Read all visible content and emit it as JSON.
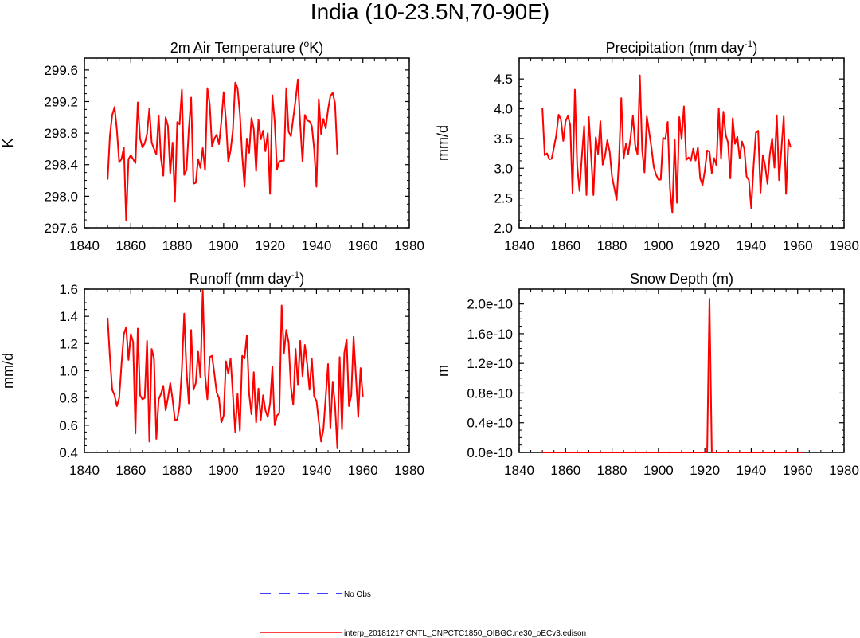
{
  "figure_title": "India (10-23.5N,70-90E)",
  "colors": {
    "model_line": "#ff0000",
    "obs_line": "#0000ff",
    "axis": "#000000"
  },
  "legend": [
    {
      "label": "No Obs",
      "style": "dashed",
      "color": "#0000ff"
    },
    {
      "label": "interp_20181217.CNTL_CNPCTC1850_OIBGC.ne30_oECv3.edison",
      "style": "solid",
      "color": "#ff0000"
    }
  ],
  "chart_data": [
    {
      "type": "line",
      "title": "2m Air Temperature (",
      "title_sup": "o",
      "title_tail": "K)",
      "xlabel": "",
      "ylabel": "K",
      "xlim": [
        1840,
        1980
      ],
      "ylim": [
        297.6,
        299.75
      ],
      "xticks": [
        1840,
        1860,
        1880,
        1900,
        1920,
        1940,
        1960,
        1980
      ],
      "yticks": [
        297.6,
        298.0,
        298.4,
        298.8,
        299.2,
        299.6
      ],
      "ytick_labels": [
        "297.6",
        "298.0",
        "298.4",
        "298.8",
        "299.2",
        "299.6"
      ],
      "x_start": 1850,
      "series": [
        {
          "name": "interp_20181217.CNTL_CNPCTC1850_OIBGC.ne30_oECv3.edison",
          "values": [
            298.21,
            298.77,
            299.03,
            299.13,
            298.84,
            298.43,
            298.47,
            298.62,
            297.69,
            298.47,
            298.52,
            298.47,
            298.42,
            299.19,
            298.73,
            298.62,
            298.67,
            298.79,
            299.11,
            298.68,
            298.6,
            298.53,
            299.02,
            298.48,
            298.26,
            299.0,
            298.89,
            298.29,
            298.68,
            297.93,
            298.94,
            298.91,
            299.35,
            298.27,
            298.33,
            298.85,
            299.25,
            298.16,
            298.17,
            298.47,
            298.36,
            298.61,
            298.33,
            299.37,
            299.17,
            298.63,
            298.73,
            298.78,
            298.66,
            298.94,
            299.32,
            298.96,
            298.44,
            298.58,
            298.84,
            299.44,
            299.37,
            299.05,
            298.52,
            298.12,
            298.73,
            298.55,
            298.99,
            298.85,
            298.32,
            298.97,
            298.72,
            298.83,
            298.57,
            298.8,
            298.03,
            299.28,
            298.95,
            298.34,
            298.44,
            298.45,
            298.45,
            299.37,
            298.82,
            298.76,
            298.99,
            299.22,
            299.48,
            298.91,
            298.44,
            299.03,
            298.96,
            298.95,
            298.89,
            298.6,
            298.12,
            299.23,
            298.79,
            298.98,
            298.86,
            299.1,
            299.27,
            299.31,
            299.18,
            298.53
          ]
        }
      ]
    },
    {
      "type": "line",
      "title": "Precipitation (mm day",
      "title_sup": "-1",
      "title_tail": ")",
      "xlabel": "",
      "ylabel": "mm/d",
      "xlim": [
        1840,
        1980
      ],
      "ylim": [
        2.0,
        4.85
      ],
      "xticks": [
        1840,
        1860,
        1880,
        1900,
        1920,
        1940,
        1960,
        1980
      ],
      "yticks": [
        2.0,
        2.5,
        3.0,
        3.5,
        4.0,
        4.5
      ],
      "ytick_labels": [
        "2.0",
        "2.5",
        "3.0",
        "3.5",
        "4.0",
        "4.5"
      ],
      "x_start": 1850,
      "series": [
        {
          "name": "interp_20181217.CNTL_CNPCTC1850_OIBGC.ne30_oECv3.edison",
          "values": [
            4.01,
            3.22,
            3.25,
            3.15,
            3.16,
            3.35,
            3.56,
            3.9,
            3.82,
            3.46,
            3.79,
            3.88,
            3.73,
            2.58,
            4.32,
            3.05,
            2.62,
            3.19,
            3.71,
            2.55,
            3.86,
            3.21,
            2.55,
            3.52,
            3.24,
            3.79,
            3.06,
            3.21,
            3.47,
            3.28,
            2.86,
            2.67,
            2.47,
            3.12,
            4.18,
            3.16,
            3.41,
            3.24,
            3.51,
            3.88,
            3.39,
            3.23,
            4.56,
            3.31,
            2.93,
            3.87,
            3.61,
            3.35,
            3.02,
            2.89,
            2.81,
            2.81,
            3.51,
            3.49,
            3.78,
            2.65,
            2.25,
            3.48,
            2.42,
            3.86,
            3.49,
            4.04,
            3.14,
            3.18,
            3.13,
            3.33,
            3.13,
            3.35,
            2.83,
            2.72,
            2.96,
            3.3,
            3.28,
            2.92,
            3.17,
            3.05,
            4.01,
            3.16,
            3.95,
            3.56,
            3.43,
            2.83,
            3.84,
            3.41,
            3.53,
            3.17,
            3.45,
            3.33,
            2.86,
            2.8,
            2.33,
            3.03,
            3.6,
            3.63,
            2.59,
            3.22,
            3.04,
            2.74,
            3.23,
            3.5,
            3.01,
            3.89,
            2.8,
            3.32,
            3.87,
            2.57,
            3.48,
            3.35
          ]
        }
      ]
    },
    {
      "type": "line",
      "title": "Runoff (mm day",
      "title_sup": "-1",
      "title_tail": ")",
      "xlabel": "",
      "ylabel": "mm/d",
      "xlim": [
        1840,
        1980
      ],
      "ylim": [
        0.4,
        1.6
      ],
      "xticks": [
        1840,
        1860,
        1880,
        1900,
        1920,
        1940,
        1960,
        1980
      ],
      "yticks": [
        0.4,
        0.6,
        0.8,
        1.0,
        1.2,
        1.4,
        1.6
      ],
      "ytick_labels": [
        "0.4",
        "0.6",
        "0.8",
        "1.0",
        "1.2",
        "1.4",
        "1.6"
      ],
      "x_start": 1850,
      "series": [
        {
          "name": "interp_20181217.CNTL_CNPCTC1850_OIBGC.ne30_oECv3.edison",
          "values": [
            1.39,
            1.1,
            0.86,
            0.82,
            0.74,
            0.8,
            1.05,
            1.27,
            1.32,
            1.08,
            1.27,
            1.21,
            0.54,
            1.31,
            0.82,
            0.79,
            0.8,
            1.22,
            0.48,
            1.16,
            1.09,
            0.5,
            0.79,
            0.83,
            0.89,
            0.71,
            0.8,
            0.91,
            0.79,
            0.64,
            0.64,
            0.74,
            1.01,
            1.42,
            1.0,
            0.76,
            1.3,
            0.86,
            0.91,
            1.14,
            0.95,
            1.59,
            0.97,
            0.79,
            1.1,
            1.11,
            0.98,
            0.84,
            0.8,
            0.62,
            0.67,
            1.07,
            0.98,
            1.09,
            0.82,
            0.55,
            0.83,
            0.56,
            1.11,
            1.09,
            1.26,
            0.83,
            0.68,
            0.99,
            0.62,
            0.87,
            0.64,
            0.82,
            0.71,
            0.66,
            0.76,
            1.03,
            0.6,
            0.67,
            0.69,
            1.48,
            1.13,
            1.3,
            1.21,
            0.88,
            0.75,
            1.16,
            0.9,
            1.22,
            0.96,
            1.19,
            1.05,
            0.86,
            1.09,
            0.81,
            0.78,
            0.63,
            0.48,
            0.57,
            0.81,
            1.05,
            0.58,
            0.92,
            0.75,
            0.43,
            1.1,
            0.57,
            1.13,
            1.23,
            0.74,
            0.82,
            1.25,
            0.96,
            0.66,
            1.02,
            0.81
          ]
        }
      ]
    },
    {
      "type": "line",
      "title": "Snow Depth (m)",
      "title_sup": "",
      "title_tail": "",
      "xlabel": "",
      "ylabel": "m",
      "xlim": [
        1840,
        1980
      ],
      "ylim": [
        0.0,
        2.2e-10
      ],
      "xticks": [
        1840,
        1860,
        1880,
        1900,
        1920,
        1940,
        1960,
        1980
      ],
      "yticks": [
        0.0,
        4e-11,
        8e-11,
        1.2e-10,
        1.6e-10,
        2e-10
      ],
      "ytick_labels": [
        "0.0e-10",
        "0.4e-10",
        "0.8e-10",
        "1.2e-10",
        "1.6e-10",
        "2.0e-10"
      ],
      "x_start": 1850,
      "series": [
        {
          "name": "interp_20181217.CNTL_CNPCTC1850_OIBGC.ne30_oECv3.edison",
          "values": [
            0,
            0,
            0,
            0,
            0,
            0,
            0,
            0,
            0,
            0,
            0,
            0,
            0,
            0,
            0,
            0,
            0,
            0,
            0,
            0,
            0,
            0,
            0,
            0,
            0,
            0,
            0,
            0,
            0,
            0,
            0,
            0,
            0,
            0,
            0,
            0,
            0,
            0,
            0,
            0,
            0,
            0,
            0,
            0,
            0,
            0,
            0,
            0,
            0,
            0,
            0,
            0,
            0,
            0,
            0,
            0,
            0,
            0,
            0,
            0,
            0,
            0,
            0,
            0,
            0,
            0,
            0,
            0,
            0,
            0,
            0,
            0,
            2.07e-10,
            0,
            0,
            0,
            0,
            0,
            0,
            0,
            0,
            0,
            0,
            0,
            0,
            0,
            0,
            0,
            0,
            0,
            0,
            0,
            0,
            0,
            0,
            0,
            0,
            0,
            0,
            0,
            0,
            0,
            0,
            0,
            0,
            0,
            0,
            0,
            0,
            0,
            0,
            0,
            0
          ]
        }
      ]
    }
  ]
}
